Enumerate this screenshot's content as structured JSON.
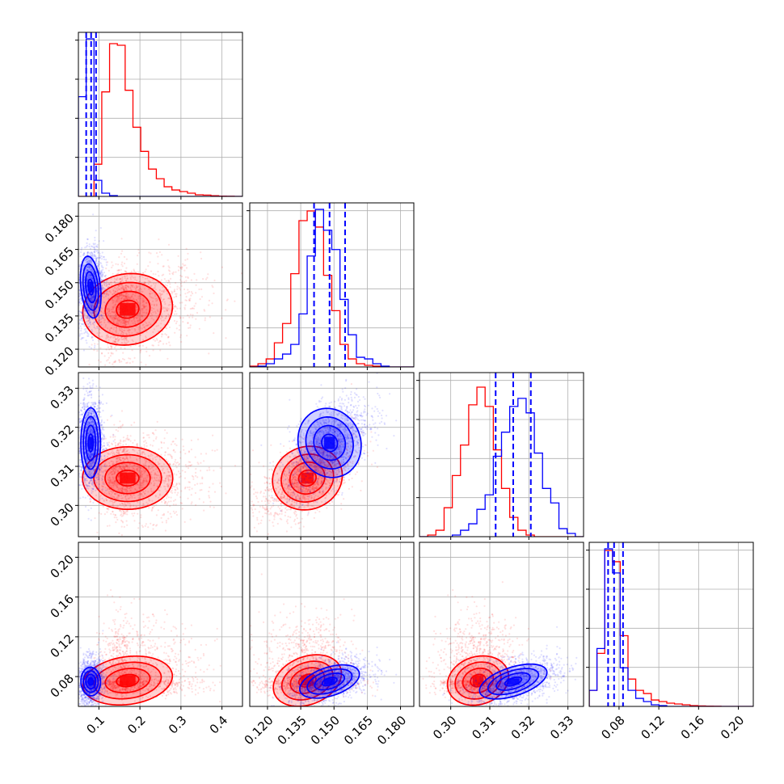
{
  "colors": {
    "blue": "#0000ff",
    "red": "#ff0000",
    "grid": "#b0b0b0",
    "frame": "#000000"
  },
  "chart_data": {
    "type": "corner",
    "grid": true,
    "parameters": [
      {
        "range": [
          0.05,
          0.45
        ],
        "ticks": [
          "0.1",
          "0.2",
          "0.3",
          "0.4"
        ],
        "tick_values": [
          0.1,
          0.2,
          0.3,
          0.4
        ]
      },
      {
        "range": [
          0.112,
          0.186
        ],
        "ticks": [
          "0.120",
          "0.135",
          "0.150",
          "0.165",
          "0.180"
        ],
        "tick_values": [
          0.12,
          0.135,
          0.15,
          0.165,
          0.18
        ]
      },
      {
        "range": [
          0.292,
          0.334
        ],
        "ticks": [
          "0.30",
          "0.31",
          "0.32",
          "0.33"
        ],
        "tick_values": [
          0.3,
          0.31,
          0.32,
          0.33
        ]
      },
      {
        "range": [
          0.05,
          0.215
        ],
        "ticks": [
          "0.08",
          "0.12",
          "0.16",
          "0.20"
        ],
        "tick_values": [
          0.08,
          0.12,
          0.16,
          0.2
        ]
      }
    ],
    "series": [
      {
        "color": "blue",
        "mean": [
          0.08,
          0.148,
          0.316,
          0.075
        ],
        "sd": [
          0.012,
          0.007,
          0.0045,
          0.009
        ],
        "quantiles": [
          [
            0.069,
            0.081,
            0.093
          ],
          [
            0.141,
            0.148,
            0.155
          ],
          [
            0.3115,
            0.316,
            0.3205
          ],
          [
            0.069,
            0.075,
            0.084
          ]
        ]
      },
      {
        "color": "red",
        "mean": [
          0.17,
          0.138,
          0.307,
          0.076
        ],
        "sd": [
          0.055,
          0.008,
          0.004,
          0.015
        ],
        "quantiles": []
      }
    ],
    "histograms": [
      {
        "bins": [
          0.05,
          0.069,
          0.088,
          0.107,
          0.126,
          0.145,
          0.164,
          0.183,
          0.202,
          0.221,
          0.24,
          0.259,
          0.278,
          0.297,
          0.316,
          0.335,
          0.354,
          0.373,
          0.392,
          0.411,
          0.43,
          0.45
        ],
        "blue": [
          0.62,
          0.98,
          0.1,
          0.02,
          0.005,
          0,
          0,
          0,
          0,
          0,
          0,
          0,
          0,
          0,
          0,
          0,
          0,
          0,
          0,
          0,
          0
        ],
        "red": [
          0,
          0,
          0.2,
          0.65,
          0.95,
          0.94,
          0.66,
          0.43,
          0.28,
          0.17,
          0.11,
          0.06,
          0.04,
          0.03,
          0.02,
          0.01,
          0.008,
          0.004,
          0.002,
          0.001,
          0
        ]
      },
      {
        "bins": [
          0.112,
          0.1157,
          0.1194,
          0.1231,
          0.1268,
          0.1305,
          0.1342,
          0.1379,
          0.1416,
          0.1453,
          0.149,
          0.1527,
          0.1564,
          0.1601,
          0.1638,
          0.1675,
          0.1712,
          0.1749,
          0.1786,
          0.1823,
          0.186
        ],
        "blue": [
          0,
          0.005,
          0.02,
          0.05,
          0.08,
          0.14,
          0.33,
          0.69,
          0.98,
          0.85,
          0.73,
          0.42,
          0.2,
          0.06,
          0.05,
          0.02,
          0.005,
          0,
          0,
          0
        ],
        "red": [
          0.005,
          0.02,
          0.05,
          0.15,
          0.27,
          0.58,
          0.91,
          0.97,
          0.87,
          0.57,
          0.35,
          0.14,
          0.05,
          0.02,
          0.01,
          0.005,
          0,
          0,
          0,
          0
        ]
      },
      {
        "bins": [
          0.292,
          0.2941,
          0.2962,
          0.2983,
          0.3004,
          0.3025,
          0.3046,
          0.3067,
          0.3088,
          0.3109,
          0.313,
          0.3151,
          0.3172,
          0.3193,
          0.3214,
          0.3235,
          0.3256,
          0.3277,
          0.3298,
          0.3319,
          0.334
        ],
        "blue": [
          0,
          0,
          0,
          0,
          0.01,
          0.04,
          0.08,
          0.17,
          0.26,
          0.5,
          0.65,
          0.81,
          0.86,
          0.77,
          0.52,
          0.3,
          0.21,
          0.05,
          0.02,
          0
        ],
        "red": [
          0,
          0.01,
          0.04,
          0.18,
          0.38,
          0.57,
          0.82,
          0.93,
          0.81,
          0.54,
          0.3,
          0.12,
          0.04,
          0.01,
          0,
          0,
          0,
          0,
          0,
          0
        ]
      },
      {
        "bins": [
          0.05,
          0.0578,
          0.0656,
          0.0734,
          0.0812,
          0.089,
          0.0968,
          0.1046,
          0.1124,
          0.1202,
          0.128,
          0.1358,
          0.1436,
          0.1514,
          0.1592,
          0.167,
          0.1748,
          0.1826,
          0.1904,
          0.1982,
          0.206,
          0.215
        ],
        "blue": [
          0.1,
          0.36,
          0.98,
          0.83,
          0.24,
          0.1,
          0.05,
          0.03,
          0.01,
          0.005,
          0,
          0,
          0,
          0,
          0,
          0,
          0,
          0,
          0,
          0,
          0
        ],
        "red": [
          0.1,
          0.33,
          0.97,
          0.9,
          0.44,
          0.17,
          0.1,
          0.08,
          0.04,
          0.03,
          0.02,
          0.015,
          0.01,
          0.005,
          0.003,
          0.002,
          0.001,
          0,
          0,
          0,
          0
        ]
      }
    ]
  }
}
